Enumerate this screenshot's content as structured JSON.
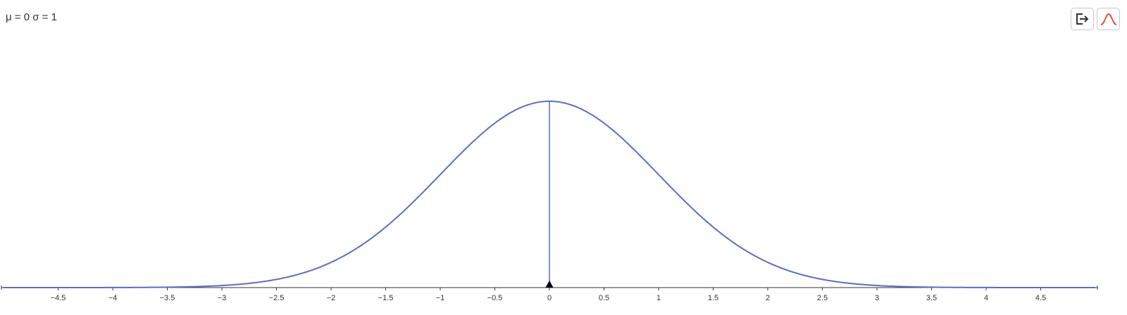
{
  "header": {
    "params_text": "μ = 0 σ = 1"
  },
  "toolbar": {
    "buttons": [
      {
        "icon": "export-icon",
        "color": "#333333"
      },
      {
        "icon": "bell-curve-icon",
        "color": "#e0533a"
      }
    ]
  },
  "chart_data": {
    "type": "line",
    "title": "",
    "xlabel": "",
    "ylabel": "",
    "distribution": "normal",
    "mu": 0,
    "sigma": 1,
    "xlim": [
      -5,
      5
    ],
    "ylim": [
      0,
      0.4
    ],
    "x_ticks": [
      -4.5,
      -4,
      -3.5,
      -3,
      -2.5,
      -2,
      -1.5,
      -1,
      -0.5,
      0,
      0.5,
      1,
      1.5,
      2,
      2.5,
      3,
      3.5,
      4,
      4.5
    ],
    "x_tick_labels": [
      "−4.5",
      "−4",
      "−3.5",
      "−3",
      "−2.5",
      "−2",
      "−1.5",
      "−1",
      "−0.5",
      "0",
      "0.5",
      "1",
      "1.5",
      "2",
      "2.5",
      "3",
      "3.5",
      "4",
      "4.5"
    ],
    "mean_marker_x": 0,
    "grid": false,
    "series": [
      {
        "x": [
          -5,
          -4.5,
          -4,
          -3.5,
          -3,
          -2.5,
          -2,
          -1.5,
          -1,
          -0.5,
          0,
          0.5,
          1,
          1.5,
          2,
          2.5,
          3,
          3.5,
          4,
          4.5,
          5
        ],
        "values": [
          1.5e-06,
          1.6e-05,
          0.000134,
          0.000873,
          0.00443,
          0.0175,
          0.054,
          0.1295,
          0.242,
          0.3521,
          0.3989,
          0.3521,
          0.242,
          0.1295,
          0.054,
          0.0175,
          0.00443,
          0.000873,
          0.000134,
          1.6e-05,
          1.5e-06
        ]
      }
    ],
    "colors": {
      "curve": "#5b6fc2",
      "axis": "#333333",
      "marker": "#000000"
    }
  }
}
